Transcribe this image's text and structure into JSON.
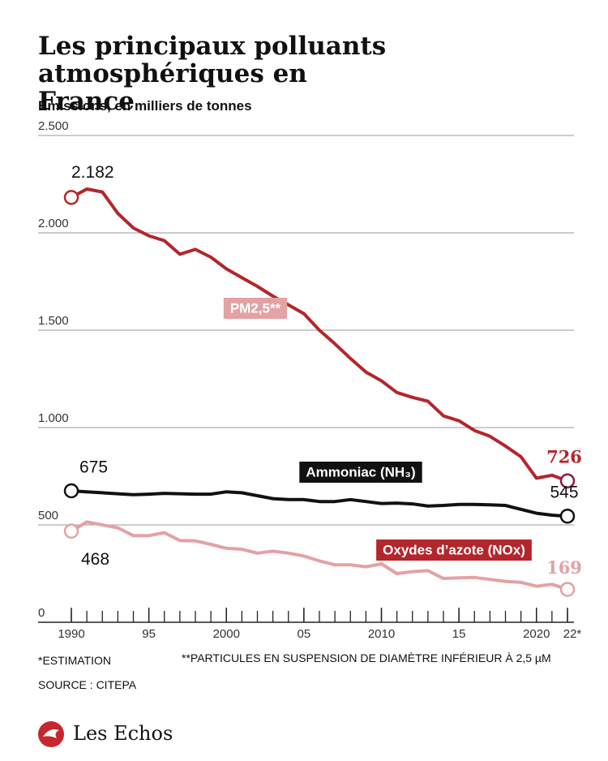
{
  "chart_data": {
    "type": "line",
    "title": "Les principaux polluants atmosphériques en France",
    "subtitle": "Emissions, en milliers de tonnes",
    "x": [
      1990,
      1991,
      1992,
      1993,
      1994,
      1995,
      1996,
      1997,
      1998,
      1999,
      2000,
      2001,
      2002,
      2003,
      2004,
      2005,
      2006,
      2007,
      2008,
      2009,
      2010,
      2011,
      2012,
      2013,
      2014,
      2015,
      2016,
      2017,
      2018,
      2019,
      2020,
      2021,
      2022
    ],
    "xlim": [
      1990,
      2022
    ],
    "xticks": [
      {
        "value": 1990,
        "label": "1990"
      },
      {
        "value": 1995,
        "label": "95"
      },
      2000,
      {
        "value": 2005,
        "label": "05"
      },
      2010,
      {
        "value": 2015,
        "label": "15"
      },
      2020,
      {
        "value": 2022,
        "label": "22*"
      }
    ],
    "ylim": [
      0,
      2500
    ],
    "yticks": [
      0,
      500,
      {
        "value": 1000,
        "label": "1.000"
      },
      {
        "value": 1500,
        "label": "1.500"
      },
      {
        "value": 2000,
        "label": "2.000"
      },
      {
        "value": 2500,
        "label": "2.500"
      }
    ],
    "grid": true,
    "series": [
      {
        "name": "Oxydes d’azote (NOx)",
        "color": "#b3262c",
        "values": [
          2182,
          2225,
          2210,
          2100,
          2025,
          1985,
          1960,
          1890,
          1915,
          1875,
          1815,
          1770,
          1725,
          1675,
          1630,
          1585,
          1500,
          1430,
          1355,
          1285,
          1240,
          1180,
          1155,
          1135,
          1060,
          1035,
          985,
          955,
          905,
          850,
          740,
          755,
          726
        ],
        "value_labels": [
          "2.182",
          null,
          null,
          null,
          null,
          null,
          null,
          null,
          null,
          null,
          null,
          null,
          null,
          null,
          null,
          null,
          null,
          null,
          null,
          null,
          null,
          null,
          null,
          null,
          null,
          null,
          null,
          null,
          null,
          null,
          null,
          null,
          "726"
        ]
      },
      {
        "name": "Ammoniac (NH₃)",
        "color": "#111111",
        "values": [
          675,
          670,
          665,
          660,
          655,
          658,
          662,
          660,
          658,
          658,
          670,
          665,
          650,
          635,
          630,
          630,
          620,
          620,
          630,
          620,
          610,
          612,
          608,
          597,
          600,
          605,
          605,
          603,
          600,
          580,
          560,
          550,
          545
        ],
        "value_labels": [
          "675",
          null,
          null,
          null,
          null,
          null,
          null,
          null,
          null,
          null,
          null,
          null,
          null,
          null,
          null,
          null,
          null,
          null,
          null,
          null,
          null,
          null,
          null,
          null,
          null,
          null,
          null,
          null,
          null,
          null,
          null,
          null,
          "545"
        ]
      },
      {
        "name": "PM2,5**",
        "color": "#e3a2a4",
        "values": [
          468,
          515,
          500,
          485,
          445,
          445,
          460,
          420,
          418,
          400,
          380,
          375,
          355,
          365,
          355,
          340,
          315,
          295,
          295,
          285,
          300,
          250,
          260,
          265,
          225,
          228,
          230,
          220,
          210,
          205,
          185,
          195,
          169
        ],
        "value_labels": [
          "468",
          null,
          null,
          null,
          null,
          null,
          null,
          null,
          null,
          null,
          null,
          null,
          null,
          null,
          null,
          null,
          null,
          null,
          null,
          null,
          null,
          null,
          null,
          null,
          null,
          null,
          null,
          null,
          null,
          null,
          null,
          null,
          "169"
        ]
      }
    ],
    "notes": [
      "*ESTIMATION",
      "**PARTICULES EN SUSPENSION DE DIAMÈTRE INFÉRIEUR À 2,5 µM",
      "SOURCE : CITEPA"
    ],
    "brand": "Les Echos"
  }
}
